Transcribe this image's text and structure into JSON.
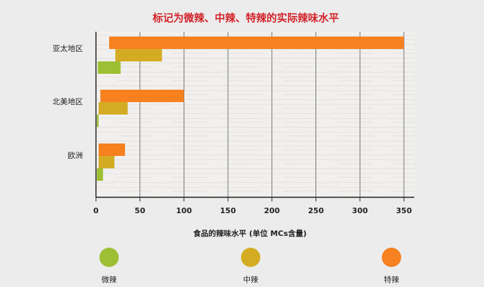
{
  "chart_data": {
    "type": "bar",
    "orientation": "horizontal",
    "title": "标记为微辣、中辣、特辣的实际辣味水平",
    "xlabel": "食品的辣味水平 (单位 MCs含量)",
    "ylabel": "",
    "categories": [
      "亚太地区",
      "北美地区",
      "欧洲"
    ],
    "xlim": [
      0,
      350
    ],
    "xticks": [
      0,
      50,
      100,
      150,
      200,
      250,
      300,
      350
    ],
    "grid": true,
    "legend_position": "bottom",
    "series": [
      {
        "name": "特辣",
        "color": "#f7801f",
        "ranges": [
          [
            15,
            350
          ],
          [
            5,
            100
          ],
          [
            3,
            33
          ]
        ]
      },
      {
        "name": "中辣",
        "color": "#d4ac23",
        "ranges": [
          [
            22,
            75
          ],
          [
            3,
            36
          ],
          [
            3,
            21
          ]
        ]
      },
      {
        "name": "微辣",
        "color": "#9dbf33",
        "ranges": [
          [
            2,
            28
          ],
          [
            1,
            3
          ],
          [
            1,
            8
          ]
        ]
      }
    ]
  },
  "legend": [
    {
      "label": "微辣",
      "color": "#9dbf33"
    },
    {
      "label": "中辣",
      "color": "#d4ac23"
    },
    {
      "label": "特辣",
      "color": "#f7801f"
    }
  ]
}
